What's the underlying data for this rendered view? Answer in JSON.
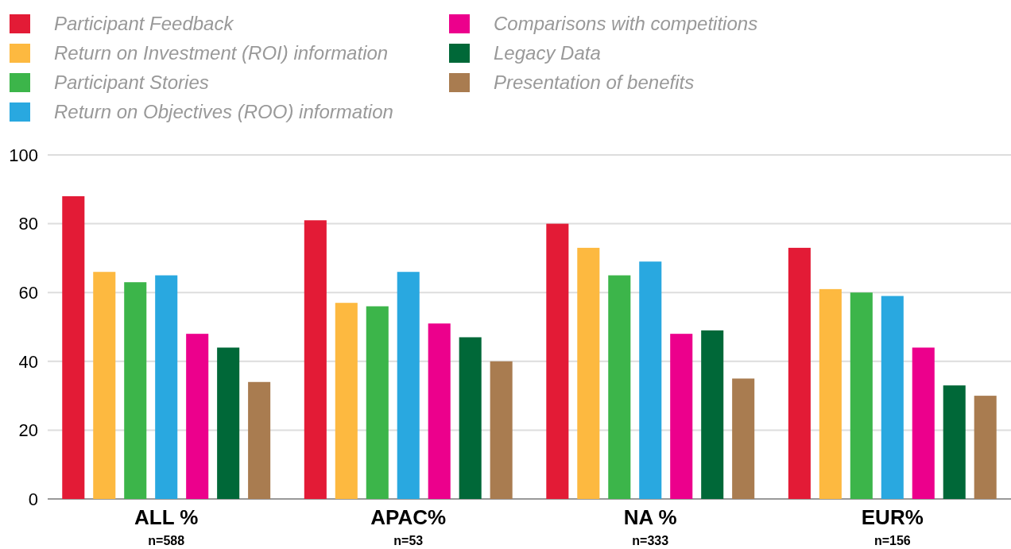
{
  "chart_data": {
    "type": "bar",
    "categories": [
      "ALL %\nn=588",
      "APAC%\nn=53",
      "NA %\nn=333",
      "EUR%\nn=156"
    ],
    "series": [
      {
        "name": "Participant Feedback",
        "color": "#e31b36",
        "values": [
          88,
          81,
          80,
          73
        ]
      },
      {
        "name": "Return on Investment (ROI) information",
        "color": "#fdb940",
        "values": [
          66,
          57,
          73,
          61
        ]
      },
      {
        "name": "Participant Stories",
        "color": "#3cb54a",
        "values": [
          63,
          56,
          65,
          60
        ]
      },
      {
        "name": "Return on Objectives (ROO) information",
        "color": "#29a8e0",
        "values": [
          65,
          66,
          69,
          59
        ]
      },
      {
        "name": "Comparisons with competitions",
        "color": "#ec008c",
        "values": [
          48,
          51,
          48,
          44
        ]
      },
      {
        "name": "Legacy Data",
        "color": "#006838",
        "values": [
          44,
          47,
          49,
          33
        ]
      },
      {
        "name": "Presentation of benefits",
        "color": "#a97c50",
        "values": [
          34,
          40,
          35,
          30
        ]
      }
    ],
    "ylim": [
      0,
      100
    ],
    "yticks": [
      0,
      20,
      40,
      60,
      80,
      100
    ],
    "grid": "y",
    "legend": "top"
  }
}
